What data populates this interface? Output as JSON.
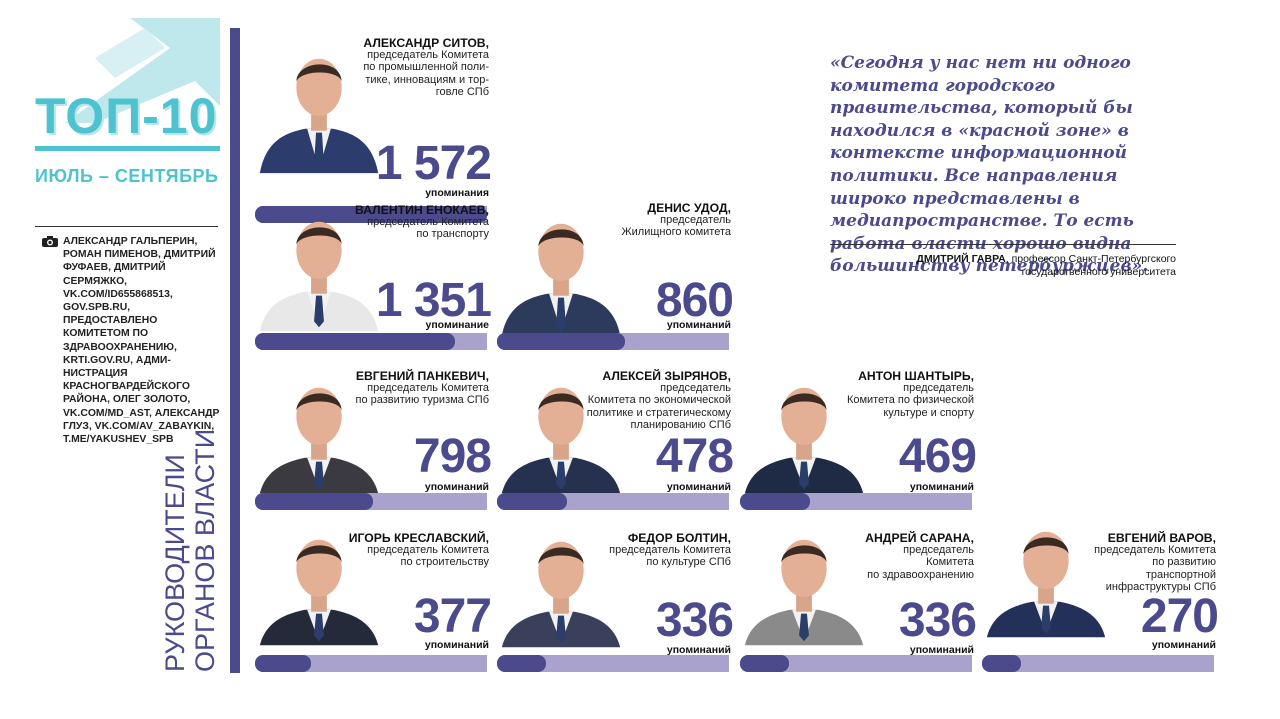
{
  "header": {
    "title": "ТОП-10",
    "period": "ИЮЛЬ – СЕНТЯБРЬ",
    "credits": "АЛЕКСАНДР ГАЛЬПЕРИН, РОМАН ПИМЕНОВ, ДМИТРИЙ ФУФАЕВ, ДМИТРИЙ СЕРМЯЖКО, VK.COM/ID655868513, GOV.SPB.RU, ПРЕДОСТАВЛЕНО КОМИТЕТОМ ПО ЗДРАВООХРА­НЕНИЮ, KRTI.GOV.RU, АДМИ­НИСТРАЦИЯ КРАСНОГВАРДЕЙ­СКОГО РАЙОНА, ОЛЕГ ЗОЛОТО, VK.COM/MD_AST, АЛЕКСАНДР ГЛУЗ, VK.COM/AV_ZABAYKIN, T.ME/YAKUSHEV_SPB",
    "camera_icon": "camera-icon"
  },
  "section_title_line1": "РУКОВОДИТЕЛИ",
  "section_title_line2": "ОРГАНОВ ВЛАСТИ",
  "colors": {
    "accent_teal": "#4ec3cf",
    "accent_purple": "#4a4a8c",
    "bar_light": "#a8a2cc"
  },
  "people": [
    {
      "name": "АЛЕКСАНДР СИТОВ,",
      "role": "председатель Комитета\nпо промышленной поли-\nтике, инновациям и тор-\nговле СПб",
      "count": "1 572",
      "label": "упоминания",
      "share": 1.0
    },
    {
      "name": "ВАЛЕНТИН ЕНОКАЕВ,",
      "role": "председатель Комитета\nпо транспорту",
      "count": "1 351",
      "label": "упоминание",
      "share": 0.86
    },
    {
      "name": "ДЕНИС УДОД,",
      "role": "председатель\nЖилищного комитета",
      "count": "860",
      "label": "упоминаний",
      "share": 0.55
    },
    {
      "name": "ЕВГЕНИЙ ПАНКЕВИЧ,",
      "role": "председатель Комитета\nпо развитию туризма СПб",
      "count": "798",
      "label": "упоминаний",
      "share": 0.51
    },
    {
      "name": "АЛЕКСЕЙ ЗЫРЯНОВ,",
      "role": "председатель\nКомитета по экономической\nполитике и стратегическому\nпланированию СПб",
      "count": "478",
      "label": "упоминаний",
      "share": 0.3
    },
    {
      "name": "АНТОН ШАНТЫРЬ,",
      "role": "председатель\nКомитета по физической\nкультуре и спорту",
      "count": "469",
      "label": "упоминаний",
      "share": 0.3
    },
    {
      "name": "ИГОРЬ КРЕСЛАВСКИЙ,",
      "role": "председатель Комитета\nпо строительству",
      "count": "377",
      "label": "упоминаний",
      "share": 0.24
    },
    {
      "name": "ФЕДОР БОЛТИН,",
      "role": "председатель Комитета\nпо культуре СПб",
      "count": "336",
      "label": "упоминаний",
      "share": 0.21
    },
    {
      "name": "АНДРЕЙ САРАНА,",
      "role": "председатель\nКомитета\nпо здравоохранению",
      "count": "336",
      "label": "упоминаний",
      "share": 0.21
    },
    {
      "name": "ЕВГЕНИЙ ВАРОВ,",
      "role": "председатель Комитета\nпо развитию\nтранспортной\nинфраструктуры СПб",
      "count": "270",
      "label": "упоминаний",
      "share": 0.17
    }
  ],
  "quote": {
    "text": "«Сегодня у нас нет ни одного коми­тета городского правительства, который бы находился в «красной зоне» в контексте информационной политики. Все направления широко представлены в медиапространстве. То есть работа власти хорошо видна большинству петербуржцев».",
    "author": "ДМИТРИЙ ГАВРА",
    "author_role": ", профессор Санкт-Петербургского государственного университета"
  }
}
